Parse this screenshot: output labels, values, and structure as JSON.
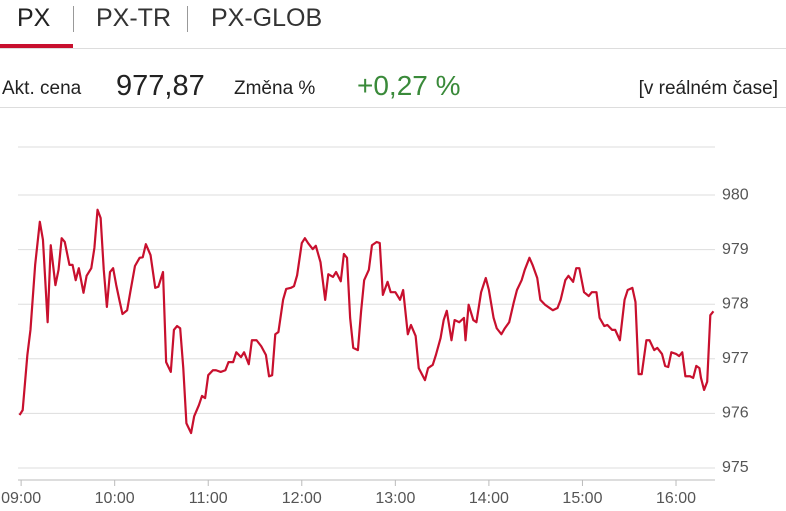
{
  "tabs": [
    "PX",
    "PX-TR",
    "PX-GLOB"
  ],
  "quote": {
    "price_label": "Akt. cena",
    "price": "977,87",
    "change_label": "Změna %",
    "change": "+0,27 %",
    "mode": "[v reálném čase]"
  },
  "chart_data": {
    "type": "line",
    "color": "#c8102e",
    "x": [
      539,
      541,
      544,
      546,
      549,
      552,
      554,
      557,
      559,
      562,
      564,
      566,
      568,
      571,
      573,
      575,
      577,
      580,
      582,
      585,
      587,
      589,
      591,
      593,
      595,
      597,
      599,
      601,
      603,
      605,
      608,
      610,
      613,
      616,
      618,
      620,
      623,
      626,
      628,
      631,
      633,
      636,
      638,
      640,
      642,
      644,
      646,
      649,
      651,
      654,
      656,
      658,
      660,
      663,
      665,
      668,
      671,
      673,
      676,
      678,
      681,
      683,
      686,
      688,
      691,
      694,
      697,
      699,
      701,
      703,
      705,
      708,
      710,
      713,
      715,
      717,
      720,
      722,
      724,
      727,
      729,
      732,
      735,
      737,
      740,
      742,
      745,
      747,
      749,
      751,
      753,
      756,
      758,
      760,
      763,
      765,
      768,
      770,
      772,
      775,
      777,
      780,
      783,
      785,
      788,
      790,
      793,
      795,
      799,
      801,
      804,
      806,
      809,
      811,
      813,
      816,
      818,
      821,
      824,
      825,
      827,
      830,
      832,
      835,
      838,
      840,
      843,
      845,
      848,
      850,
      853,
      856,
      858,
      861,
      863,
      866,
      868,
      871,
      873,
      876,
      879,
      881,
      884,
      886,
      889,
      891,
      894,
      896,
      898,
      901,
      904,
      906,
      909,
      911,
      914,
      916,
      919,
      921,
      924,
      927,
      929,
      932,
      934,
      936,
      938,
      941,
      943,
      946,
      948,
      951,
      953,
      955,
      957,
      960,
      962,
      964,
      966,
      969,
      971,
      973,
      975,
      976,
      978,
      980,
      982,
      984
    ],
    "values": [
      975.97,
      976.06,
      977.07,
      977.53,
      978.72,
      979.51,
      979.18,
      977.67,
      979.08,
      978.35,
      978.63,
      979.21,
      979.14,
      978.72,
      978.72,
      978.44,
      978.66,
      978.21,
      978.52,
      978.66,
      979.03,
      979.73,
      979.58,
      978.63,
      977.95,
      978.59,
      978.66,
      978.35,
      978.08,
      977.82,
      977.89,
      978.22,
      978.7,
      978.85,
      978.86,
      979.1,
      978.9,
      978.3,
      978.32,
      978.59,
      976.94,
      976.76,
      977.53,
      977.6,
      977.56,
      976.83,
      975.82,
      975.64,
      975.95,
      976.15,
      976.32,
      976.28,
      976.7,
      976.79,
      976.79,
      976.76,
      976.79,
      976.94,
      976.94,
      977.12,
      977.03,
      977.12,
      976.9,
      977.34,
      977.34,
      977.23,
      977.07,
      976.68,
      976.7,
      977.45,
      977.49,
      978.08,
      978.28,
      978.3,
      978.33,
      978.53,
      979.12,
      979.21,
      979.12,
      979.01,
      979.07,
      978.77,
      978.08,
      978.55,
      978.5,
      978.59,
      978.42,
      978.92,
      978.85,
      977.75,
      977.2,
      977.16,
      977.86,
      978.44,
      978.63,
      979.08,
      979.14,
      979.12,
      978.17,
      978.41,
      978.22,
      978.22,
      978.08,
      978.26,
      977.45,
      977.62,
      977.42,
      976.83,
      976.61,
      976.83,
      976.89,
      977.07,
      977.38,
      977.71,
      977.88,
      977.34,
      977.71,
      977.67,
      977.75,
      977.34,
      977.99,
      977.71,
      977.67,
      978.22,
      978.48,
      978.26,
      977.75,
      977.56,
      977.45,
      977.55,
      977.67,
      978.04,
      978.26,
      978.44,
      978.63,
      978.85,
      978.72,
      978.48,
      978.08,
      977.99,
      977.93,
      977.89,
      977.93,
      978.08,
      978.44,
      978.52,
      978.41,
      978.66,
      978.66,
      978.22,
      978.15,
      978.22,
      978.22,
      977.75,
      977.6,
      977.62,
      977.53,
      977.53,
      977.34,
      978.08,
      978.26,
      978.3,
      978.04,
      976.72,
      976.72,
      977.34,
      977.34,
      977.16,
      977.2,
      977.09,
      976.87,
      976.85,
      977.12,
      977.09,
      977.05,
      977.12,
      976.68,
      976.68,
      976.65,
      976.87,
      976.83,
      976.65,
      976.43,
      976.58,
      977.8,
      977.87
    ],
    "xlim": [
      538,
      985
    ],
    "xticks": [
      {
        "value": 540,
        "label": "09:00"
      },
      {
        "value": 600,
        "label": "10:00"
      },
      {
        "value": 660,
        "label": "11:00"
      },
      {
        "value": 720,
        "label": "12:00"
      },
      {
        "value": 780,
        "label": "13:00"
      },
      {
        "value": 840,
        "label": "14:00"
      },
      {
        "value": 900,
        "label": "15:00"
      },
      {
        "value": 960,
        "label": "16:00"
      }
    ],
    "ylim": [
      974.78,
      980.88
    ],
    "yticks": [
      975,
      976,
      977,
      978,
      979,
      980
    ],
    "grid": true
  }
}
